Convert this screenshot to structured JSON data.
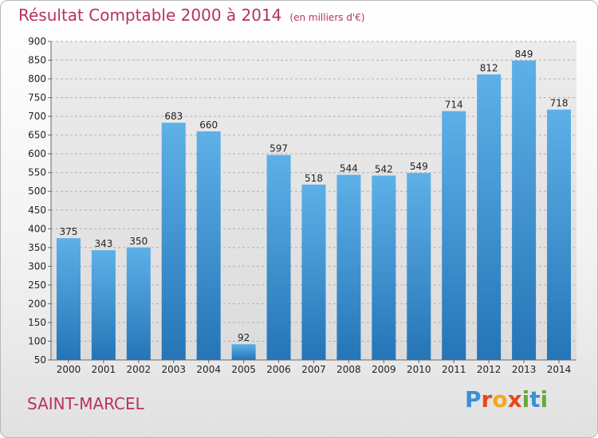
{
  "chart_data": {
    "type": "bar",
    "title": "Résultat Comptable 2000 à 2014",
    "subtitle": "(en milliers d'€)",
    "categories": [
      "2000",
      "2001",
      "2002",
      "2003",
      "2004",
      "2005",
      "2006",
      "2007",
      "2008",
      "2009",
      "2010",
      "2011",
      "2012",
      "2013",
      "2014"
    ],
    "values": [
      375,
      343,
      350,
      683,
      660,
      92,
      597,
      518,
      544,
      542,
      549,
      714,
      812,
      849,
      718
    ],
    "ylim": [
      50,
      900
    ],
    "yticks": [
      50,
      100,
      150,
      200,
      250,
      300,
      350,
      400,
      450,
      500,
      550,
      600,
      650,
      700,
      750,
      800,
      850,
      900
    ],
    "grid": true,
    "bar_color_top": "#5eb0e8",
    "bar_color_bottom": "#2575b7"
  },
  "footer": {
    "city": "SAINT-MARCEL",
    "logo": {
      "text": "Proxiti",
      "letter_colors": [
        "#3a8fd6",
        "#e8481c",
        "#f2a81d",
        "#e8481c",
        "#6aa83c",
        "#3a8fd6",
        "#6aa83c"
      ]
    }
  },
  "colors": {
    "title": "#b8325a",
    "grid": "#b0b0b0",
    "background_plot": "#e6e6e6"
  }
}
